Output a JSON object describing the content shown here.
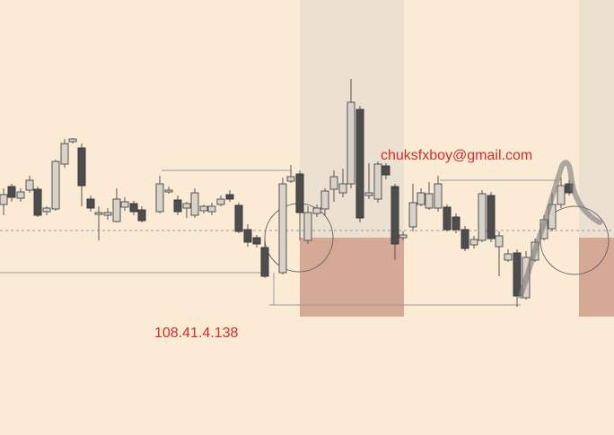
{
  "header": {
    "email": "chuksfxboy@gmail.com"
  },
  "watermark": {
    "ip": "108.41.4.138"
  }
}
